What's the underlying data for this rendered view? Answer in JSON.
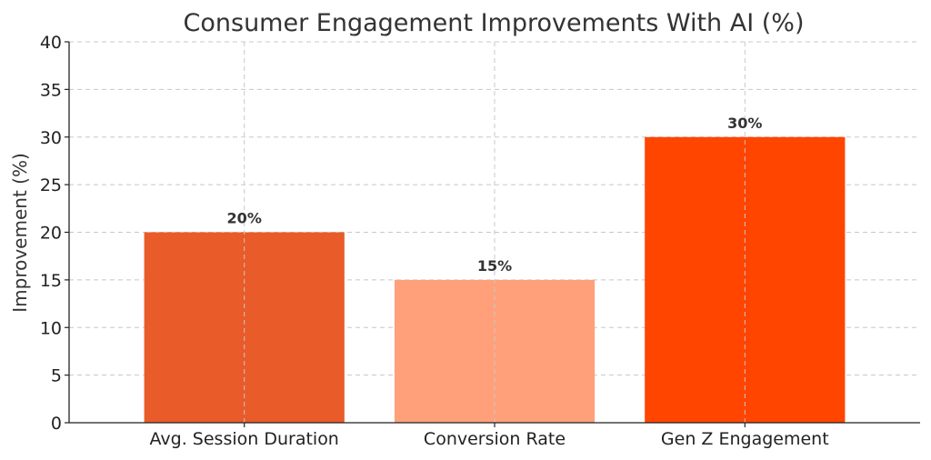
{
  "chart_data": {
    "type": "bar",
    "title": "Consumer Engagement Improvements With AI (%)",
    "xlabel": "",
    "ylabel": "Improvement (%)",
    "categories": [
      "Avg. Session Duration",
      "Conversion Rate",
      "Gen Z Engagement"
    ],
    "values": [
      20,
      15,
      30
    ],
    "data_labels": [
      "20%",
      "15%",
      "30%"
    ],
    "colors": [
      "#E95B28",
      "#FFA07A",
      "#FF4500"
    ],
    "ylim": [
      0,
      40
    ],
    "yticks": [
      0,
      5,
      10,
      15,
      20,
      25,
      30,
      35,
      40
    ],
    "grid": true,
    "legend": "none"
  }
}
